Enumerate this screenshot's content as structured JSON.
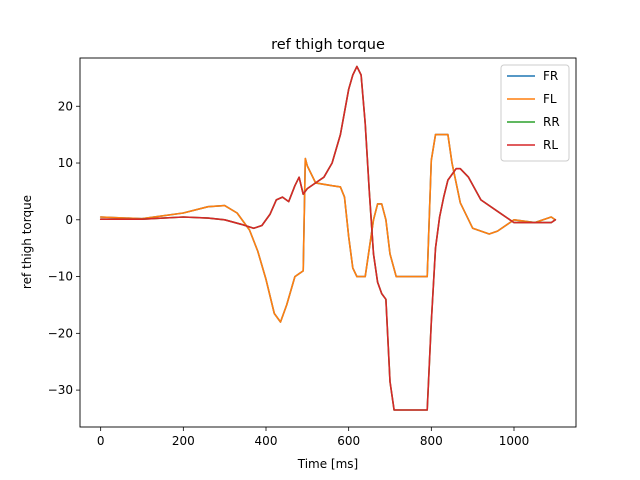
{
  "chart_data": {
    "type": "line",
    "title": "ref thigh torque",
    "xlabel": "Time [ms]",
    "ylabel": "ref thigh torque",
    "xlim": [
      -50,
      1150
    ],
    "ylim": [
      -36.5,
      28.5
    ],
    "xticks": [
      0,
      200,
      400,
      600,
      800,
      1000
    ],
    "yticks": [
      -30,
      -20,
      -10,
      0,
      10,
      20
    ],
    "legend_position": "top-right",
    "series": [
      {
        "name": "FR",
        "color": "#1f77b4",
        "x": [
          0,
          100,
          200,
          260,
          300,
          330,
          360,
          380,
          400,
          420,
          435,
          450,
          470,
          480,
          490,
          495,
          500,
          520,
          560,
          580,
          590,
          600,
          610,
          620,
          630,
          640,
          660,
          670,
          680,
          690,
          700,
          715,
          740,
          760,
          780,
          790,
          800,
          810,
          840,
          850,
          870,
          900,
          940,
          960,
          1000,
          1050,
          1090,
          1100
        ],
        "y": [
          0.5,
          0.2,
          1.2,
          2.3,
          2.5,
          1.2,
          -1.8,
          -5.5,
          -10.5,
          -16.5,
          -18,
          -15,
          -10,
          -9.5,
          -9,
          10.8,
          9.5,
          6.5,
          6,
          5.8,
          4,
          -3,
          -8.5,
          -10,
          -10,
          -10,
          0,
          2.8,
          2.8,
          0,
          -6,
          -10,
          -10,
          -10,
          -10,
          -10,
          10.5,
          15,
          15,
          10,
          3,
          -1.5,
          -2.5,
          -2,
          0,
          -0.5,
          0.5,
          0
        ]
      },
      {
        "name": "FL",
        "color": "#ff7f0e",
        "x": [
          0,
          100,
          200,
          260,
          300,
          330,
          360,
          380,
          400,
          420,
          435,
          450,
          470,
          480,
          490,
          495,
          500,
          520,
          560,
          580,
          590,
          600,
          610,
          620,
          630,
          640,
          660,
          670,
          680,
          690,
          700,
          715,
          740,
          760,
          780,
          790,
          800,
          810,
          840,
          850,
          870,
          900,
          940,
          960,
          1000,
          1050,
          1090,
          1100
        ],
        "y": [
          0.5,
          0.2,
          1.2,
          2.3,
          2.5,
          1.2,
          -1.8,
          -5.5,
          -10.5,
          -16.5,
          -18,
          -15,
          -10,
          -9.5,
          -9,
          10.8,
          9.5,
          6.5,
          6,
          5.8,
          4,
          -3,
          -8.5,
          -10,
          -10,
          -10,
          0,
          2.8,
          2.8,
          0,
          -6,
          -10,
          -10,
          -10,
          -10,
          -10,
          10.5,
          15,
          15,
          10,
          3,
          -1.5,
          -2.5,
          -2,
          0,
          -0.5,
          0.5,
          0
        ]
      },
      {
        "name": "RR",
        "color": "#2ca02c",
        "x": [
          0,
          100,
          200,
          260,
          300,
          340,
          370,
          390,
          410,
          425,
          440,
          455,
          470,
          480,
          490,
          500,
          520,
          540,
          560,
          580,
          600,
          610,
          620,
          630,
          640,
          650,
          660,
          670,
          680,
          690,
          700,
          710,
          720,
          740,
          760,
          780,
          790,
          800,
          810,
          820,
          830,
          840,
          860,
          870,
          890,
          920,
          960,
          1000,
          1050,
          1090,
          1100
        ],
        "y": [
          0.1,
          0.1,
          0.5,
          0.3,
          0,
          -0.8,
          -1.5,
          -1,
          1,
          3.5,
          4,
          3.2,
          6,
          7.5,
          4.5,
          5.5,
          6.5,
          7.5,
          10,
          15,
          23,
          25.5,
          27,
          25.5,
          17,
          5,
          -6,
          -11,
          -13,
          -14,
          -28.5,
          -33.5,
          -33.5,
          -33.5,
          -33.5,
          -33.5,
          -33.5,
          -18,
          -5,
          0.5,
          4,
          7,
          9,
          9,
          7.5,
          3.5,
          1.5,
          -0.5,
          -0.5,
          -0.5,
          0
        ]
      },
      {
        "name": "RL",
        "color": "#d62728",
        "x": [
          0,
          100,
          200,
          260,
          300,
          340,
          370,
          390,
          410,
          425,
          440,
          455,
          470,
          480,
          490,
          500,
          520,
          540,
          560,
          580,
          600,
          610,
          620,
          630,
          640,
          650,
          660,
          670,
          680,
          690,
          700,
          710,
          720,
          740,
          760,
          780,
          790,
          800,
          810,
          820,
          830,
          840,
          860,
          870,
          890,
          920,
          960,
          1000,
          1050,
          1090,
          1100
        ],
        "y": [
          0.1,
          0.1,
          0.5,
          0.3,
          0,
          -0.8,
          -1.5,
          -1,
          1,
          3.5,
          4,
          3.2,
          6,
          7.5,
          4.5,
          5.5,
          6.5,
          7.5,
          10,
          15,
          23,
          25.5,
          27,
          25.5,
          17,
          5,
          -6,
          -11,
          -13,
          -14,
          -28.5,
          -33.5,
          -33.5,
          -33.5,
          -33.5,
          -33.5,
          -33.5,
          -18,
          -5,
          0.5,
          4,
          7,
          9,
          9,
          7.5,
          3.5,
          1.5,
          -0.5,
          -0.5,
          -0.5,
          0
        ]
      }
    ]
  }
}
